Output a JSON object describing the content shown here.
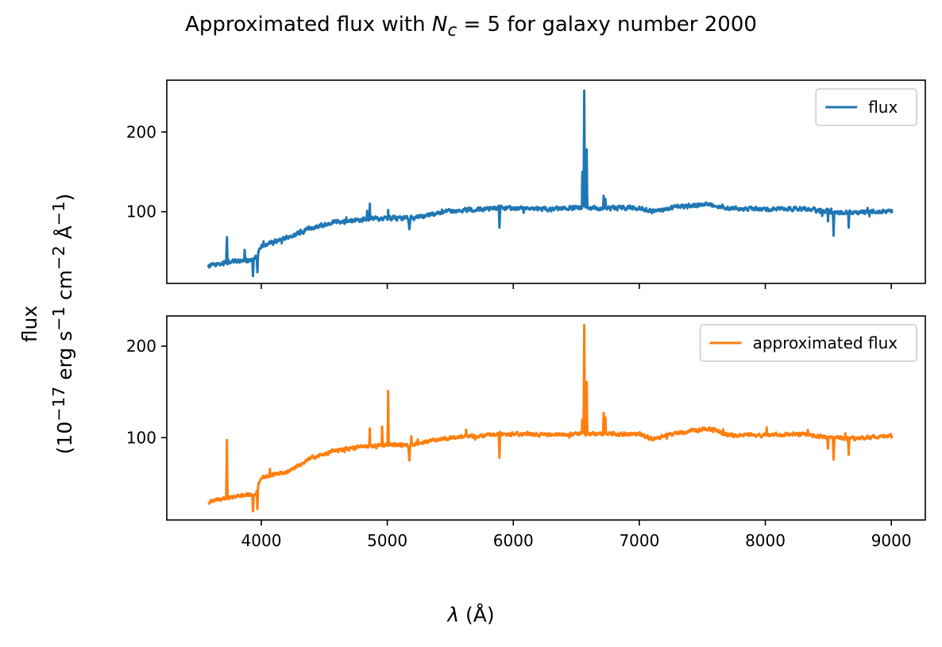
{
  "figure": {
    "title_prefix": "Approximated flux with ",
    "title_symbol": "N",
    "title_subscript": "c",
    "title_suffix": " = 5 for galaxy number 2000",
    "ylabel_line1": "flux",
    "ylabel_line2_prefix": "(10",
    "ylabel_exp1": "−17",
    "ylabel_mid1": " erg s",
    "ylabel_exp2": "−1",
    "ylabel_mid2": " cm",
    "ylabel_exp3": "−2",
    "ylabel_mid3": " Å",
    "ylabel_exp4": "−1",
    "ylabel_suffix": ")",
    "xlabel_symbol": "λ",
    "xlabel_suffix": " (Å)"
  },
  "chart_data": [
    {
      "type": "line",
      "series": [
        {
          "name": "flux",
          "color": "#1f77b4"
        }
      ],
      "x_range": [
        3580,
        9010
      ],
      "xlim": [
        3250,
        9270
      ],
      "ylim": [
        10,
        265
      ],
      "xticks": [
        4000,
        5000,
        6000,
        7000,
        8000,
        9000
      ],
      "xtick_labels_shown": false,
      "yticks": [
        100,
        200
      ],
      "continuum_knots": [
        [
          3580,
          32
        ],
        [
          3800,
          38
        ],
        [
          3950,
          40
        ],
        [
          4000,
          57
        ],
        [
          4200,
          67
        ],
        [
          4400,
          80
        ],
        [
          4600,
          88
        ],
        [
          4800,
          90
        ],
        [
          5000,
          92
        ],
        [
          5200,
          92
        ],
        [
          5400,
          98
        ],
        [
          5600,
          102
        ],
        [
          5900,
          105
        ],
        [
          6100,
          104
        ],
        [
          6300,
          103
        ],
        [
          6500,
          105
        ],
        [
          6700,
          104
        ],
        [
          7000,
          105
        ],
        [
          7100,
          100
        ],
        [
          7300,
          106
        ],
        [
          7550,
          110
        ],
        [
          7700,
          104
        ],
        [
          8000,
          103
        ],
        [
          8300,
          104
        ],
        [
          8500,
          100
        ],
        [
          8700,
          99
        ],
        [
          9010,
          101
        ]
      ],
      "features": [
        [
          3727,
          68,
          6
        ],
        [
          3868,
          52,
          5
        ],
        [
          3934,
          20,
          6
        ],
        [
          3969,
          24,
          5
        ],
        [
          4861,
          110,
          4
        ],
        [
          5007,
          102,
          4
        ],
        [
          5175,
          78,
          8
        ],
        [
          5890,
          80,
          6
        ],
        [
          6548,
          150,
          4
        ],
        [
          6563,
          252,
          5
        ],
        [
          6583,
          178,
          4
        ],
        [
          6717,
          120,
          5
        ],
        [
          6731,
          116,
          4
        ],
        [
          8498,
          88,
          5
        ],
        [
          8542,
          70,
          5
        ],
        [
          8662,
          80,
          5
        ]
      ],
      "noise_amplitude": 4,
      "legend": "upper right",
      "grid": false
    },
    {
      "type": "line",
      "series": [
        {
          "name": "approximated flux",
          "color": "#ff7f0e"
        }
      ],
      "x_range": [
        3580,
        9010
      ],
      "xlim": [
        3250,
        9270
      ],
      "ylim": [
        10,
        233
      ],
      "xticks": [
        4000,
        5000,
        6000,
        7000,
        8000,
        9000
      ],
      "yticks": [
        100,
        200
      ],
      "continuum_knots": [
        [
          3580,
          30
        ],
        [
          3800,
          36
        ],
        [
          3950,
          38
        ],
        [
          4000,
          57
        ],
        [
          4200,
          62
        ],
        [
          4400,
          78
        ],
        [
          4600,
          86
        ],
        [
          4800,
          90
        ],
        [
          5000,
          92
        ],
        [
          5200,
          92
        ],
        [
          5400,
          98
        ],
        [
          5600,
          101
        ],
        [
          5900,
          104
        ],
        [
          6100,
          104
        ],
        [
          6300,
          103
        ],
        [
          6500,
          104
        ],
        [
          6700,
          104
        ],
        [
          7000,
          104
        ],
        [
          7100,
          98
        ],
        [
          7300,
          105
        ],
        [
          7550,
          110
        ],
        [
          7700,
          103
        ],
        [
          8000,
          103
        ],
        [
          8300,
          104
        ],
        [
          8500,
          100
        ],
        [
          8700,
          99
        ],
        [
          9010,
          102
        ]
      ],
      "features": [
        [
          3727,
          97,
          5
        ],
        [
          3934,
          20,
          6
        ],
        [
          3969,
          22,
          5
        ],
        [
          4861,
          110,
          4
        ],
        [
          4959,
          112,
          4
        ],
        [
          5007,
          151,
          4
        ],
        [
          5175,
          75,
          8
        ],
        [
          5890,
          78,
          6
        ],
        [
          6548,
          120,
          4
        ],
        [
          6563,
          223,
          5
        ],
        [
          6583,
          160,
          4
        ],
        [
          6717,
          127,
          5
        ],
        [
          6731,
          122,
          4
        ],
        [
          8498,
          88,
          5
        ],
        [
          8542,
          76,
          5
        ],
        [
          8662,
          82,
          5
        ]
      ],
      "noise_amplitude": 3,
      "legend": "upper right",
      "grid": false
    }
  ]
}
